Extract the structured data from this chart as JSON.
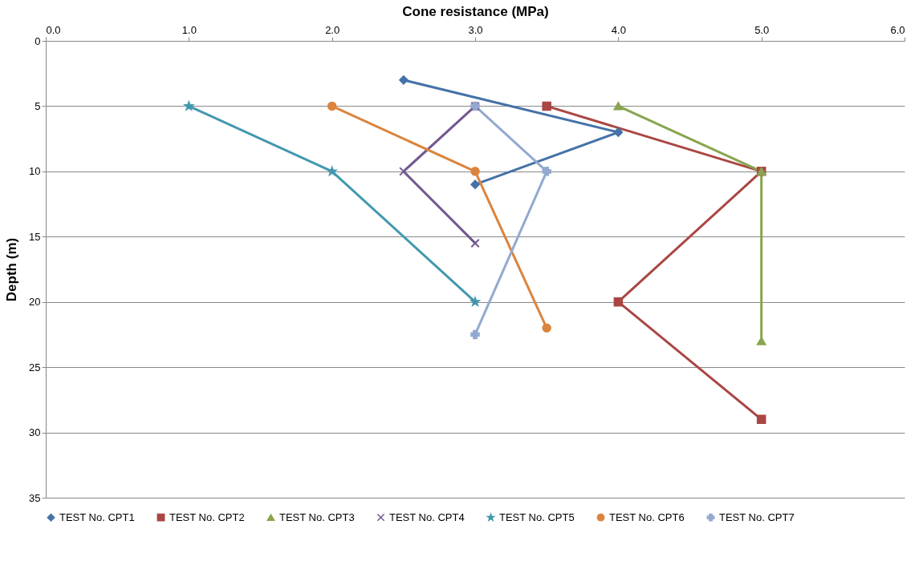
{
  "chart_data": {
    "type": "line",
    "xlabel": "Cone resistance (MPa)",
    "ylabel": "Depth (m)",
    "xlim": [
      0,
      6
    ],
    "xticks": [
      {
        "value": 0,
        "label": "0.0"
      },
      {
        "value": 1,
        "label": "1.0"
      },
      {
        "value": 2,
        "label": "2.0"
      },
      {
        "value": 3,
        "label": "3.0"
      },
      {
        "value": 4,
        "label": "4.0"
      },
      {
        "value": 5,
        "label": "5.0"
      },
      {
        "value": 6,
        "label": "6.0"
      }
    ],
    "ylim": [
      35,
      0
    ],
    "yticks": [
      0,
      5,
      10,
      15,
      20,
      25,
      30,
      35
    ],
    "grid": "y",
    "legend": "bottom",
    "series": [
      {
        "name": "TEST No. CPT1",
        "color": "#4572a7",
        "marker": "diamond",
        "x": [
          2.5,
          4,
          3
        ],
        "values": [
          3,
          7,
          11
        ]
      },
      {
        "name": "TEST No. CPT2",
        "color": "#aa4643",
        "marker": "square",
        "x": [
          3.5,
          5,
          4,
          5
        ],
        "values": [
          5,
          10,
          20,
          29
        ]
      },
      {
        "name": "TEST No. CPT3",
        "color": "#89a54e",
        "marker": "triangle",
        "x": [
          4,
          5,
          5
        ],
        "values": [
          5,
          10,
          23
        ]
      },
      {
        "name": "TEST No. CPT4",
        "color": "#71588f",
        "marker": "x",
        "x": [
          3,
          2.5,
          3
        ],
        "values": [
          5,
          10,
          15.5
        ]
      },
      {
        "name": "TEST No. CPT5",
        "color": "#4198af",
        "marker": "star",
        "x": [
          1,
          2,
          3
        ],
        "values": [
          5,
          10,
          20
        ]
      },
      {
        "name": "TEST No. CPT6",
        "color": "#db843d",
        "marker": "circle",
        "x": [
          2,
          3,
          3.5
        ],
        "values": [
          5,
          10,
          22
        ]
      },
      {
        "name": "TEST No. CPT7",
        "color": "#93a9cf",
        "marker": "cross",
        "x": [
          3,
          3.5,
          3
        ],
        "values": [
          5,
          10,
          22.5
        ]
      }
    ]
  }
}
